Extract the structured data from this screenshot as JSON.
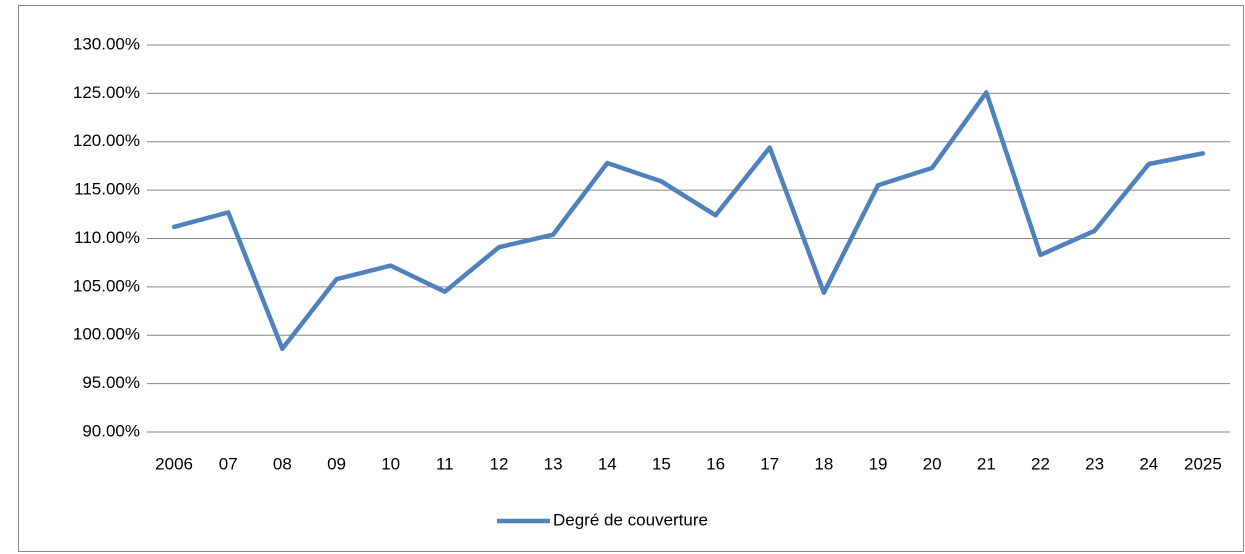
{
  "chart_data": {
    "type": "line",
    "categories": [
      "2006",
      "07",
      "08",
      "09",
      "10",
      "11",
      "12",
      "13",
      "14",
      "15",
      "16",
      "17",
      "18",
      "19",
      "20",
      "21",
      "22",
      "23",
      "24",
      "2025"
    ],
    "series": [
      {
        "name": "Degré de couverture",
        "color": "#4f81bd",
        "values": [
          111.2,
          112.7,
          98.6,
          105.8,
          107.2,
          104.5,
          109.1,
          110.4,
          117.8,
          115.9,
          112.4,
          119.4,
          104.4,
          115.5,
          117.3,
          125.1,
          108.3,
          110.8,
          117.7,
          118.8
        ]
      }
    ],
    "ylim": [
      90,
      130
    ],
    "yticks": [
      {
        "value": 90,
        "label": "90.00%"
      },
      {
        "value": 95,
        "label": "95.00%"
      },
      {
        "value": 100,
        "label": "100.00%"
      },
      {
        "value": 105,
        "label": "105.00%"
      },
      {
        "value": 110,
        "label": "110.00%"
      },
      {
        "value": 115,
        "label": "115.00%"
      },
      {
        "value": 120,
        "label": "120.00%"
      },
      {
        "value": 125,
        "label": "125.00%"
      },
      {
        "value": 130,
        "label": "130.00%"
      }
    ],
    "grid": true,
    "legend": "bottom"
  }
}
